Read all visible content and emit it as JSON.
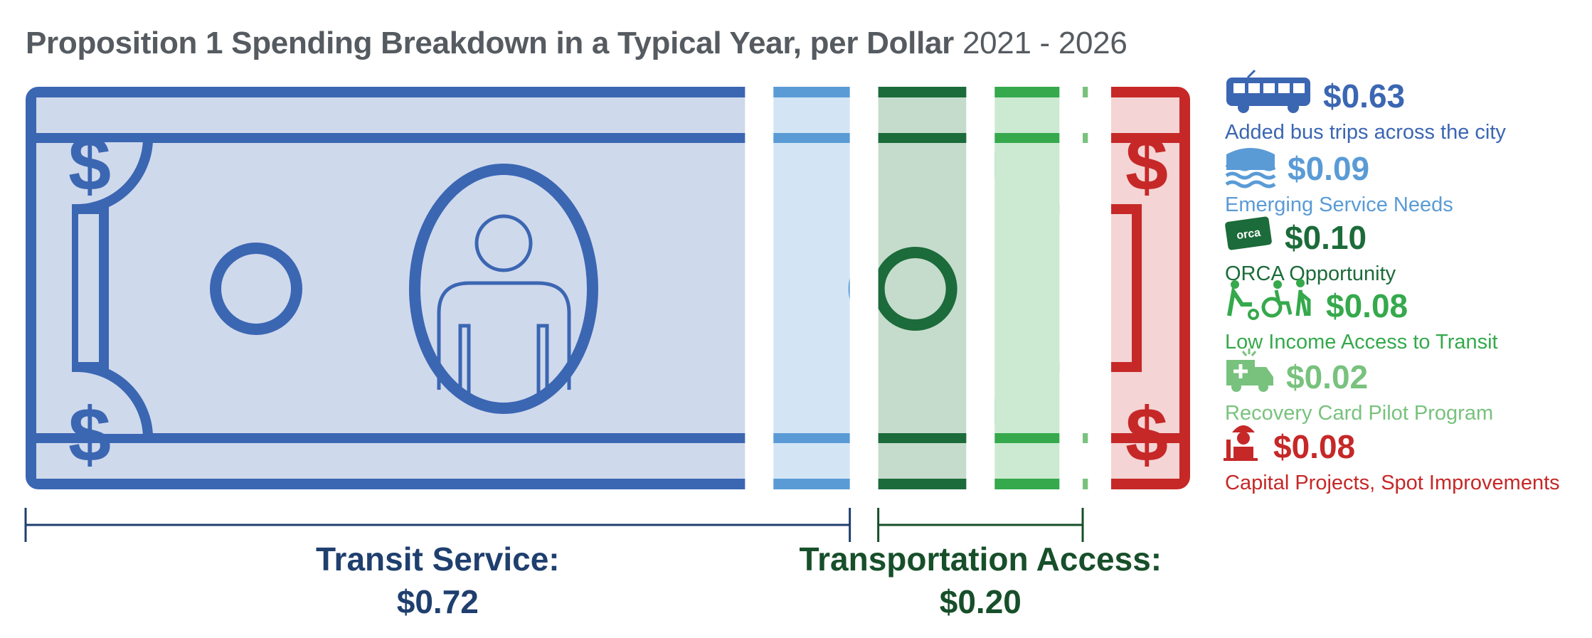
{
  "chart_data": {
    "type": "bar",
    "title": "Proposition 1 Spending Breakdown in a Typical Year, per Dollar",
    "subtitle": "2021 - 2026",
    "unit": "$ per dollar",
    "total": 1.0,
    "categories": [
      "Added bus trips across the city",
      "Emerging Service Needs",
      "ORCA Opportunity",
      "Low Income Access to Transit",
      "Recovery Card Pilot Program",
      "Capital Projects, Spot Improvements"
    ],
    "values": [
      0.63,
      0.09,
      0.1,
      0.08,
      0.02,
      0.08
    ],
    "value_labels": [
      "$0.63",
      "$0.09",
      "$0.10",
      "$0.08",
      "$0.02",
      "$0.08"
    ],
    "icons": [
      "bus-icon",
      "water-icon",
      "orca-card-icon",
      "accessibility-icon",
      "ambulance-icon",
      "construction-worker-icon"
    ],
    "colors": [
      "#3b66b2",
      "#5a9bd6",
      "#1c6b3a",
      "#35a94c",
      "#78c27d",
      "#c62828"
    ],
    "fill_colors": [
      "#cfd9ec",
      "#d3e5f5",
      "#c5dccd",
      "#cbead1",
      "#dff1e0",
      "#f4d4d4"
    ],
    "groups": [
      {
        "name": "Transit Service:",
        "value_label": "$0.72",
        "value": 0.72,
        "members": [
          0,
          1
        ],
        "color": "#1f3f6e"
      },
      {
        "name": "Transportation Access:",
        "value_label": "$0.20",
        "value": 0.2,
        "members": [
          2,
          3,
          4
        ],
        "color": "#174f2a"
      }
    ]
  }
}
